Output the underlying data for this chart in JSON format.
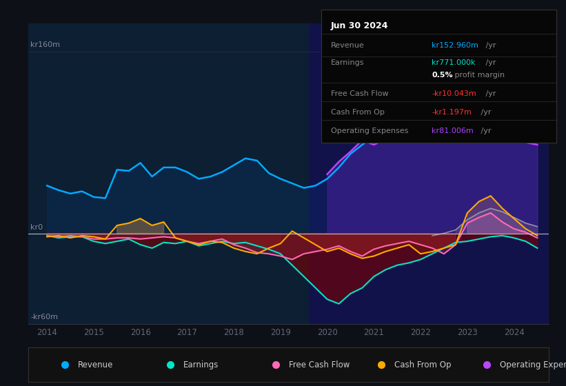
{
  "bg_color": "#0d1117",
  "title_box_date": "Jun 30 2024",
  "info_rows": [
    {
      "label": "Revenue",
      "value": "kr152.960m",
      "suffix": " /yr",
      "vcolor": "#00aaff"
    },
    {
      "label": "Earnings",
      "value": "kr771.000k",
      "suffix": " /yr",
      "vcolor": "#00e5cc"
    },
    {
      "label": "",
      "value": "0.5%",
      "suffix": " profit margin",
      "vcolor": "#ffffff"
    },
    {
      "label": "Free Cash Flow",
      "value": "-kr10.043m",
      "suffix": " /yr",
      "vcolor": "#ff3333"
    },
    {
      "label": "Cash From Op",
      "value": "-kr1.197m",
      "suffix": " /yr",
      "vcolor": "#ff3333"
    },
    {
      "label": "Operating Expenses",
      "value": "kr81.006m",
      "suffix": " /yr",
      "vcolor": "#aa44ff"
    }
  ],
  "revenue_color": "#00aaff",
  "earnings_color": "#00e5cc",
  "fcf_color": "#ff69b4",
  "cashop_color": "#ffaa00",
  "opex_color": "#bb44ff",
  "zero_line_color": "#cccccc",
  "grid_color": "#333344",
  "axis_label_color": "#888899",
  "tick_color": "#666677",
  "legend_labels": [
    "Revenue",
    "Earnings",
    "Free Cash Flow",
    "Cash From Op",
    "Operating Expenses"
  ],
  "legend_colors": [
    "#00aaff",
    "#00e5cc",
    "#ff69b4",
    "#ffaa00",
    "#bb44ff"
  ],
  "xmin": 2013.6,
  "xmax": 2024.75,
  "ymin": -80,
  "ymax": 185,
  "highlight_left_color": "#0d1f33",
  "highlight_right_color": "#12124a",
  "split_year": 2019.6
}
